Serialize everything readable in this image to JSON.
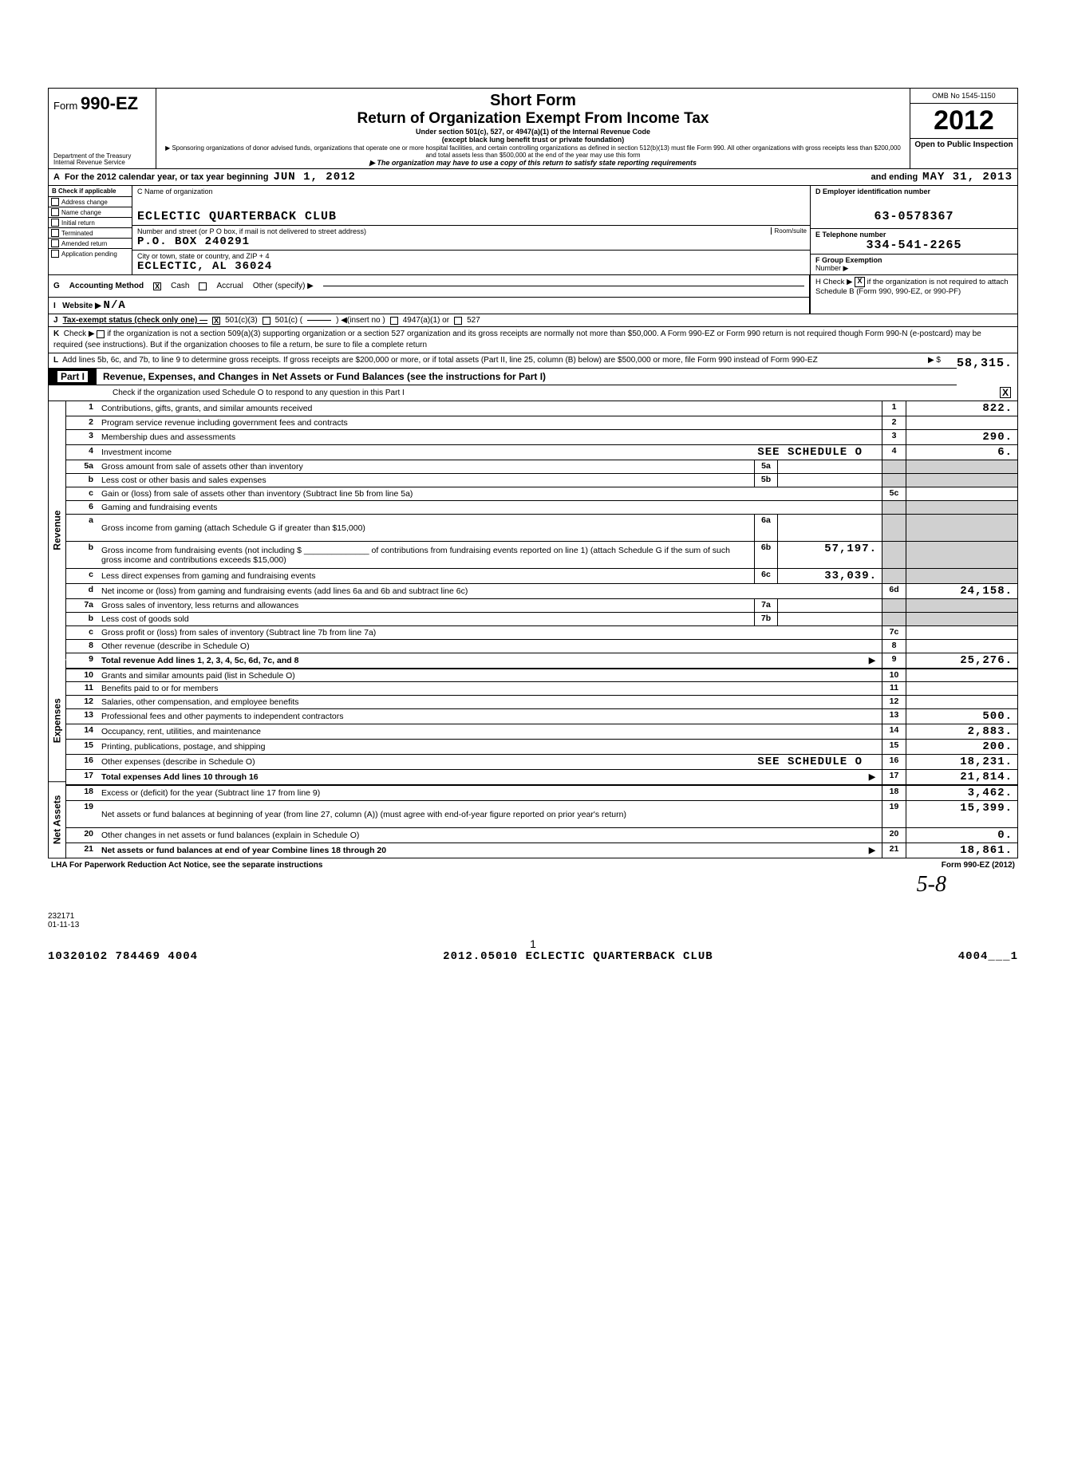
{
  "header": {
    "form_label": "Form",
    "form_number": "990-EZ",
    "dept1": "Department of the Treasury",
    "dept2": "Internal Revenue Service",
    "title1": "Short Form",
    "title2": "Return of Organization Exempt From Income Tax",
    "subtitle1": "Under section 501(c), 527, or 4947(a)(1) of the Internal Revenue Code",
    "subtitle2": "(except black lung benefit trust or private foundation)",
    "desc": "▶ Sponsoring organizations of donor advised funds, organizations that operate one or more hospital facilities, and certain controlling organizations as defined in section 512(b)(13) must file Form 990. All other organizations with gross receipts less than $200,000 and total assets less than $500,000 at the end of the year may use this form",
    "last": "▶ The organization may have to use a copy of this return to satisfy state reporting requirements",
    "omb": "OMB No 1545-1150",
    "year": "2012",
    "public": "Open to Public Inspection"
  },
  "lineA": {
    "prefix": "A",
    "text1": "For the 2012 calendar year, or tax year beginning",
    "begin": "JUN 1, 2012",
    "text2": "and ending",
    "end": "MAY 31, 2013"
  },
  "colB": {
    "letter": "B",
    "hd": "Check if applicable",
    "items": [
      "Address change",
      "Name change",
      "Initial return",
      "Terminated",
      "Amended return",
      "Application pending"
    ]
  },
  "colC": {
    "name_lbl": "C Name of organization",
    "name": "ECLECTIC QUARTERBACK CLUB",
    "addr_lbl": "Number and street (or P O box, if mail is not delivered to street address)",
    "room_lbl": "Room/suite",
    "addr": "P.O. BOX 240291",
    "city_lbl": "City or town, state or country, and ZIP + 4",
    "city": "ECLECTIC, AL  36024"
  },
  "colDE": {
    "d_lbl": "D Employer identification number",
    "ein": "63-0578367",
    "e_lbl": "E  Telephone number",
    "phone": "334-541-2265",
    "f_lbl": "F Group Exemption",
    "f_lbl2": "Number ▶"
  },
  "lineG": {
    "letter": "G",
    "label": "Accounting Method",
    "cash": "Cash",
    "accrual": "Accrual",
    "other": "Other (specify) ▶",
    "h": "H Check ▶",
    "h2": "if the organization is not required to attach Schedule B (Form 990, 990-EZ, or 990-PF)"
  },
  "lineI": {
    "letter": "I",
    "label": "Website ▶",
    "val": "N/A"
  },
  "lineJ": {
    "letter": "J",
    "label": "Tax-exempt status (check only one) —",
    "a": "501(c)(3)",
    "b": "501(c) (",
    "b2": ") ◀(insert no )",
    "c": "4947(a)(1) or",
    "d": "527"
  },
  "lineK": {
    "letter": "K",
    "label": "Check ▶",
    "text": "if the organization is not a section 509(a)(3) supporting organization or a section 527 organization and its gross receipts are normally not more than $50,000. A Form 990-EZ or Form 990 return is not required though Form 990-N (e-postcard) may be required (see instructions). But if the organization chooses to file a return, be sure to file a complete return"
  },
  "lineL": {
    "letter": "L",
    "text": "Add lines 5b, 6c, and 7b, to line 9 to determine gross receipts. If gross receipts are $200,000 or more, or if total assets (Part II, line 25, column (B) below) are $500,000 or more, file Form 990 instead of Form 990-EZ",
    "sym": "▶  $",
    "amt": "58,315."
  },
  "part1": {
    "tab": "Part I",
    "title": "Revenue, Expenses, and Changes in Net Assets or Fund Balances (see the instructions for Part I)",
    "sub": "Check if the organization used Schedule O to respond to any question in this Part I"
  },
  "sections": {
    "revenue": "Revenue",
    "expenses": "Expenses",
    "netassets": "Net Assets"
  },
  "rows": [
    {
      "n": "1",
      "d": "Contributions, gifts, grants, and similar amounts received",
      "en": "1",
      "ev": "822."
    },
    {
      "n": "2",
      "d": "Program service revenue including government fees and contracts",
      "en": "2",
      "ev": ""
    },
    {
      "n": "3",
      "d": "Membership dues and assessments",
      "en": "3",
      "ev": "290."
    },
    {
      "n": "4",
      "d": "Investment income",
      "note": "SEE SCHEDULE O",
      "en": "4",
      "ev": "6."
    },
    {
      "n": "5a",
      "d": "Gross amount from sale of assets other than inventory",
      "mn": "5a",
      "mv": "",
      "shadeEnd": true
    },
    {
      "n": "b",
      "d": "Less cost or other basis and sales expenses",
      "mn": "5b",
      "mv": "",
      "shadeEnd": true
    },
    {
      "n": "c",
      "d": "Gain or (loss) from sale of assets other than inventory (Subtract line 5b from line 5a)",
      "en": "5c",
      "ev": ""
    },
    {
      "n": "6",
      "d": "Gaming and fundraising events",
      "shadeEnd": true,
      "shadeMid": true,
      "noMid": true
    },
    {
      "n": "a",
      "d": "Gross income from gaming (attach Schedule G if greater than $15,000)",
      "mn": "6a",
      "mv": "",
      "shadeEnd": true,
      "tall": true
    },
    {
      "n": "b",
      "d": "Gross income from fundraising events (not including $ ______________ of contributions from fundraising events reported on line 1) (attach Schedule G if the sum of such gross income and contributions exceeds $15,000)",
      "mn": "6b",
      "mv": "57,197.",
      "shadeEnd": true,
      "tall": true
    },
    {
      "n": "c",
      "d": "Less direct expenses from gaming and fundraising events",
      "mn": "6c",
      "mv": "33,039.",
      "shadeEnd": true
    },
    {
      "n": "d",
      "d": "Net income or (loss) from gaming and fundraising events (add lines 6a and 6b and subtract line 6c)",
      "en": "6d",
      "ev": "24,158."
    },
    {
      "n": "7a",
      "d": "Gross sales of inventory, less returns and allowances",
      "mn": "7a",
      "mv": "",
      "shadeEnd": true
    },
    {
      "n": "b",
      "d": "Less cost of goods sold",
      "mn": "7b",
      "mv": "",
      "shadeEnd": true
    },
    {
      "n": "c",
      "d": "Gross profit or (loss) from sales of inventory (Subtract line 7b from line 7a)",
      "en": "7c",
      "ev": ""
    },
    {
      "n": "8",
      "d": "Other revenue (describe in Schedule O)",
      "en": "8",
      "ev": ""
    },
    {
      "n": "9",
      "d": "Total revenue Add lines 1, 2, 3, 4, 5c, 6d, 7c, and 8",
      "arrow": true,
      "en": "9",
      "ev": "25,276.",
      "bold": true
    }
  ],
  "exp_rows": [
    {
      "n": "10",
      "d": "Grants and similar amounts paid (list in Schedule O)",
      "en": "10",
      "ev": ""
    },
    {
      "n": "11",
      "d": "Benefits paid to or for members",
      "en": "11",
      "ev": ""
    },
    {
      "n": "12",
      "d": "Salaries, other compensation, and employee benefits",
      "en": "12",
      "ev": ""
    },
    {
      "n": "13",
      "d": "Professional fees and other payments to independent contractors",
      "en": "13",
      "ev": "500."
    },
    {
      "n": "14",
      "d": "Occupancy, rent, utilities, and maintenance",
      "en": "14",
      "ev": "2,883."
    },
    {
      "n": "15",
      "d": "Printing, publications, postage, and shipping",
      "en": "15",
      "ev": "200."
    },
    {
      "n": "16",
      "d": "Other expenses (describe in Schedule O)",
      "note": "SEE SCHEDULE O",
      "en": "16",
      "ev": "18,231."
    },
    {
      "n": "17",
      "d": "Total expenses Add lines 10 through 16",
      "arrow": true,
      "en": "17",
      "ev": "21,814.",
      "bold": true
    }
  ],
  "net_rows": [
    {
      "n": "18",
      "d": "Excess or (deficit) for the year (Subtract line 17 from line 9)",
      "en": "18",
      "ev": "3,462."
    },
    {
      "n": "19",
      "d": "Net assets or fund balances at beginning of year (from line 27, column (A)) (must agree with end-of-year figure reported on prior year's return)",
      "en": "19",
      "ev": "15,399.",
      "tall": true
    },
    {
      "n": "20",
      "d": "Other changes in net assets or fund balances (explain in Schedule O)",
      "en": "20",
      "ev": "0."
    },
    {
      "n": "21",
      "d": "Net assets or fund balances at end of year Combine lines 18 through 20",
      "arrow": true,
      "en": "21",
      "ev": "18,861.",
      "bold": true
    }
  ],
  "footer": {
    "lha": "LHA  For Paperwork Reduction Act Notice, see the separate instructions",
    "form": "Form 990-EZ (2012)",
    "code1": "232171",
    "code2": "01-11-13",
    "btm_left": "10320102 784469 4004",
    "btm_mid": "2012.05010 ECLECTIC QUARTERBACK CLUB",
    "btm_right": "4004___1",
    "page": "1",
    "sig": "5-8"
  }
}
